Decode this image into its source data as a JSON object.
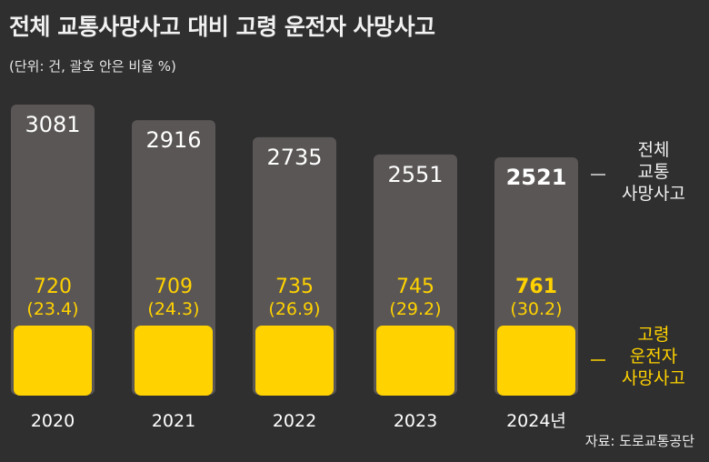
{
  "title": "전체 교통사망사고 대비 고령 운전자 사망사고",
  "subtitle": "(단위: 건, 괄호 안은 비율 %)",
  "source": "자료: 도로교통공단",
  "colors": {
    "background": "#2f2f2f",
    "total_bar": "#5a5655",
    "elderly_bar": "#ffd200",
    "elderly_text": "#ffd200",
    "text": "#f2f2f2"
  },
  "chart_data": {
    "type": "bar",
    "categories": [
      "2020",
      "2021",
      "2022",
      "2023",
      "2024년"
    ],
    "series": [
      {
        "name": "전체 교통사망사고",
        "values": [
          3081,
          2916,
          2735,
          2551,
          2521
        ]
      },
      {
        "name": "고령 운전자 사망사고",
        "values": [
          720,
          709,
          735,
          745,
          761
        ]
      }
    ],
    "elderly_share_labels": [
      "(23.4)",
      "(24.3)",
      "(26.9)",
      "(29.2)",
      "(30.2)"
    ],
    "legend": [
      {
        "lines": [
          "전체",
          "교통",
          "사망사고"
        ]
      },
      {
        "lines": [
          "고령",
          "운전자",
          "사망사고"
        ]
      }
    ],
    "ylim": [
      0,
      3081
    ],
    "grid": false,
    "legend_position": "right"
  }
}
